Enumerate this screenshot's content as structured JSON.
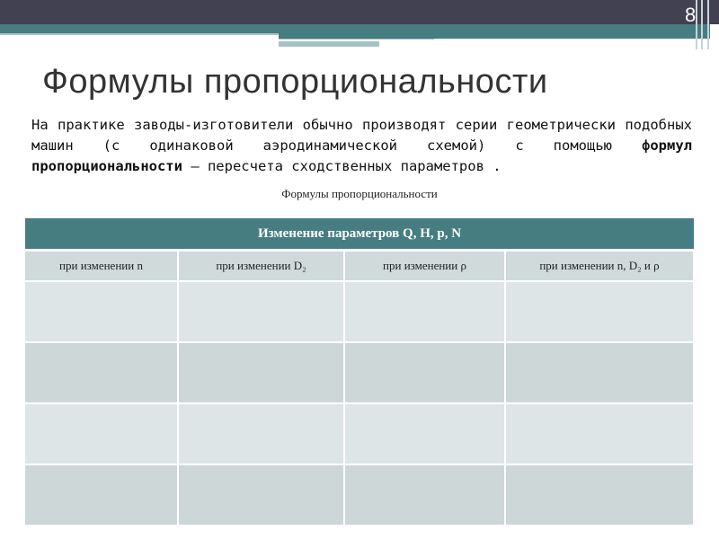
{
  "slide": {
    "number": "8",
    "title": "Формулы пропорциональности"
  },
  "paragraph": {
    "part1": "На практике заводы-изготовители обычно производят серии геометрически подобных машин (с одинаковой аэродинамической схемой) с помощью ",
    "bold": "формул пропорциональности",
    "part2": " – пересчета сходственных параметров ."
  },
  "table": {
    "caption": "Формулы пропорциональности",
    "header": "Изменение параметров Q, H, p, N",
    "columns": [
      "при изменении n",
      "при изменении D₂",
      "при изменении ρ",
      "при изменении n, D₂ и ρ"
    ]
  },
  "colors": {
    "dark": "#414152",
    "teal": "#457d80"
  }
}
